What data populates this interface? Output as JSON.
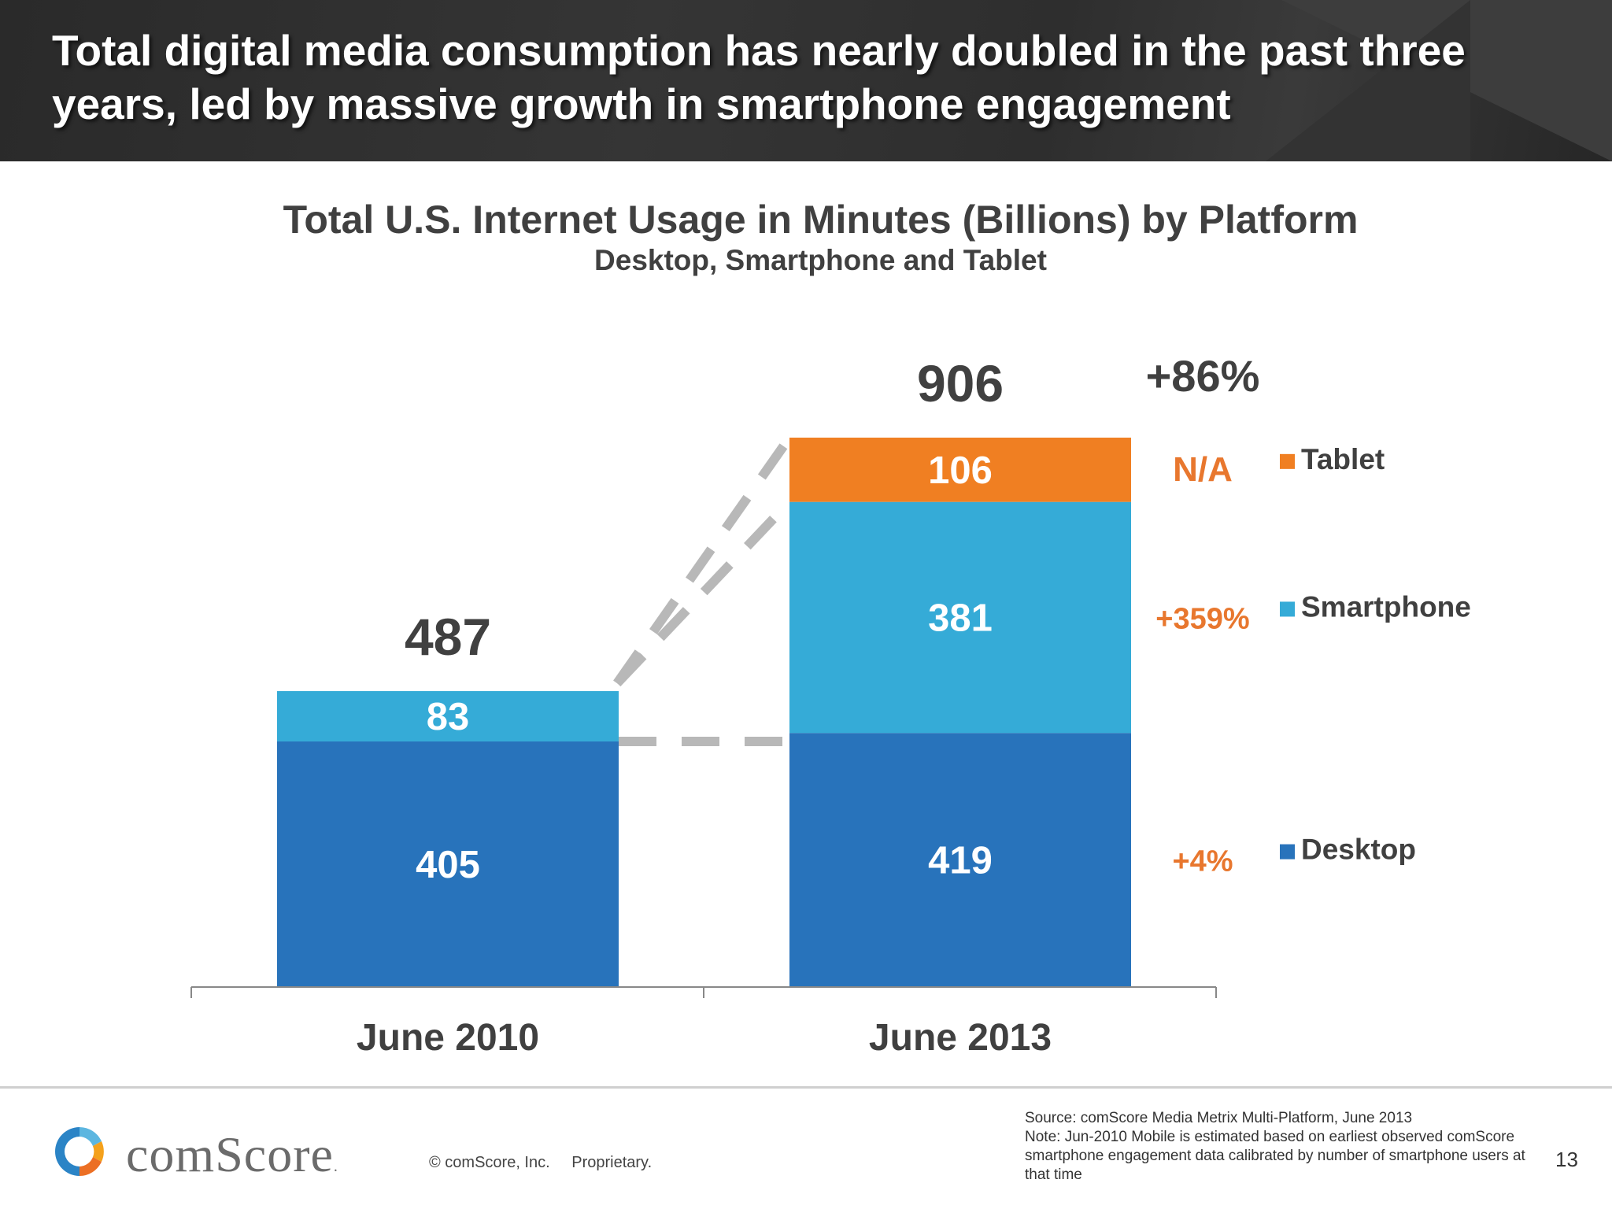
{
  "headline": "Total digital media consumption has nearly doubled in the past three years, led by massive growth in smartphone engagement",
  "chart_data": {
    "type": "bar",
    "stacked": true,
    "title": "Total U.S. Internet Usage in Minutes (Billions) by Platform",
    "subtitle": "Desktop, Smartphone and Tablet",
    "categories": [
      "June 2010",
      "June 2013"
    ],
    "series": [
      {
        "name": "Desktop",
        "values": [
          405,
          419
        ],
        "value_labels": [
          "405",
          "419"
        ],
        "color": "#2873bb",
        "growth": "+4%"
      },
      {
        "name": "Smartphone",
        "values": [
          83,
          381
        ],
        "value_labels": [
          "83",
          "381"
        ],
        "color": "#35abd7",
        "growth": "+359%"
      },
      {
        "name": "Tablet",
        "values": [
          0,
          106
        ],
        "value_labels": [
          "",
          "106"
        ],
        "color": "#f07f22",
        "growth": "N/A"
      }
    ],
    "totals": [
      "487",
      "906"
    ],
    "total_growth": "+86%",
    "ylim": [
      0,
      906
    ],
    "legend": "right",
    "growth_color": "#e8772e",
    "connector_color": "#b8b8b8"
  },
  "footer": {
    "brand": "comScore",
    "copyright": "© comScore, Inc.",
    "proprietary": "Proprietary.",
    "source_lines": [
      "Source: comScore Media Metrix Multi-Platform, June 2013",
      "Note: Jun-2010 Mobile is estimated based on earliest observed comScore",
      "smartphone engagement data calibrated by number of smartphone users at",
      "that time"
    ],
    "page_number": "13"
  }
}
